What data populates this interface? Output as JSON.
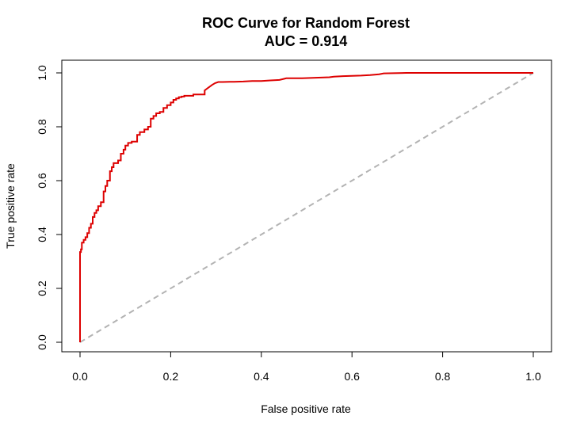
{
  "chart_data": {
    "type": "line",
    "title": "ROC Curve for Random Forest",
    "subtitle": "AUC =  0.914",
    "xlabel": "False positive rate",
    "ylabel": "True positive rate",
    "xlim": [
      0,
      1
    ],
    "ylim": [
      0,
      1
    ],
    "x_ticks": [
      "0.0",
      "0.2",
      "0.4",
      "0.6",
      "0.8",
      "1.0"
    ],
    "y_ticks": [
      "0.0",
      "0.2",
      "0.4",
      "0.6",
      "0.8",
      "1.0"
    ],
    "grid": false,
    "legend": "none",
    "colors": {
      "roc": "#dd0000",
      "diagonal": "#b3b3b3"
    },
    "series": [
      {
        "style": "solid-red",
        "x": [
          0.0,
          0.0,
          0.002,
          0.002,
          0.004,
          0.004,
          0.008,
          0.008,
          0.012,
          0.012,
          0.016,
          0.016,
          0.02,
          0.02,
          0.024,
          0.024,
          0.028,
          0.028,
          0.032,
          0.032,
          0.036,
          0.036,
          0.04,
          0.04,
          0.046,
          0.046,
          0.052,
          0.052,
          0.056,
          0.056,
          0.06,
          0.06,
          0.066,
          0.066,
          0.07,
          0.07,
          0.074,
          0.074,
          0.084,
          0.084,
          0.09,
          0.09,
          0.096,
          0.096,
          0.1,
          0.1,
          0.106,
          0.106,
          0.114,
          0.114,
          0.126,
          0.126,
          0.132,
          0.132,
          0.142,
          0.142,
          0.15,
          0.15,
          0.156,
          0.156,
          0.162,
          0.162,
          0.168,
          0.168,
          0.176,
          0.176,
          0.184,
          0.184,
          0.192,
          0.192,
          0.2,
          0.2,
          0.206,
          0.206,
          0.212,
          0.212,
          0.218,
          0.218,
          0.224,
          0.224,
          0.23,
          0.23,
          0.25,
          0.25,
          0.275,
          0.275,
          0.283,
          0.291,
          0.298,
          0.305,
          0.315,
          0.33,
          0.34,
          0.36,
          0.38,
          0.4,
          0.42,
          0.44,
          0.45,
          0.455,
          0.49,
          0.52,
          0.55,
          0.56,
          0.58,
          0.62,
          0.64,
          0.66,
          0.67,
          0.72,
          0.8,
          0.9,
          1.0
        ],
        "y": [
          0.0,
          0.335,
          0.335,
          0.345,
          0.345,
          0.37,
          0.37,
          0.38,
          0.38,
          0.39,
          0.39,
          0.405,
          0.405,
          0.425,
          0.425,
          0.44,
          0.44,
          0.465,
          0.465,
          0.48,
          0.48,
          0.49,
          0.49,
          0.505,
          0.505,
          0.52,
          0.52,
          0.56,
          0.56,
          0.58,
          0.58,
          0.6,
          0.6,
          0.635,
          0.635,
          0.65,
          0.65,
          0.665,
          0.665,
          0.675,
          0.675,
          0.7,
          0.7,
          0.715,
          0.715,
          0.73,
          0.73,
          0.74,
          0.74,
          0.745,
          0.745,
          0.77,
          0.77,
          0.78,
          0.78,
          0.79,
          0.79,
          0.8,
          0.8,
          0.83,
          0.83,
          0.84,
          0.84,
          0.85,
          0.85,
          0.855,
          0.855,
          0.87,
          0.87,
          0.88,
          0.88,
          0.89,
          0.89,
          0.9,
          0.9,
          0.905,
          0.905,
          0.91,
          0.91,
          0.912,
          0.912,
          0.915,
          0.915,
          0.92,
          0.92,
          0.935,
          0.945,
          0.955,
          0.962,
          0.966,
          0.966,
          0.967,
          0.967,
          0.968,
          0.97,
          0.97,
          0.972,
          0.974,
          0.978,
          0.98,
          0.98,
          0.982,
          0.984,
          0.986,
          0.988,
          0.99,
          0.992,
          0.995,
          0.998,
          1.0,
          1.0,
          1.0,
          1.0
        ]
      },
      {
        "style": "dashed-gray",
        "x": [
          0,
          1
        ],
        "y": [
          0,
          1
        ]
      }
    ]
  }
}
